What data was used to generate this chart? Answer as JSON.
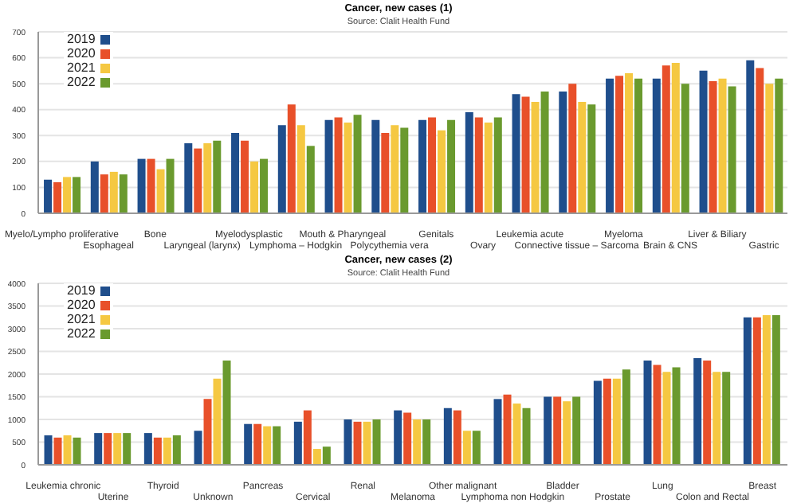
{
  "chart_data": [
    {
      "type": "bar",
      "title": "Cancer, new cases (1)",
      "subtitle": "Source: Clalit Health Fund",
      "categories": [
        "Myelo/Lympho proliferative",
        "Esophageal",
        "Bone",
        "Laryngeal (larynx)",
        "Myelodysplastic",
        "Lymphoma – Hodgkin",
        "Mouth & Pharyngeal",
        "Polycythemia vera",
        "Genitals",
        "Ovary",
        "Leukemia acute",
        "Connective tissue – Sarcoma",
        "Myeloma",
        "Brain & CNS",
        "Liver & Biliary",
        "Gastric"
      ],
      "series": [
        {
          "name": "2019",
          "color": "#1f4e8c",
          "values": [
            130,
            200,
            210,
            270,
            310,
            340,
            360,
            360,
            360,
            390,
            460,
            470,
            520,
            520,
            550,
            590
          ]
        },
        {
          "name": "2020",
          "color": "#e8502a",
          "values": [
            120,
            150,
            210,
            250,
            280,
            420,
            370,
            310,
            370,
            370,
            450,
            500,
            530,
            570,
            510,
            560
          ]
        },
        {
          "name": "2021",
          "color": "#f5c842",
          "values": [
            140,
            160,
            170,
            270,
            200,
            340,
            350,
            340,
            320,
            350,
            430,
            430,
            540,
            580,
            520,
            500
          ]
        },
        {
          "name": "2022",
          "color": "#6a9a2e",
          "values": [
            140,
            150,
            210,
            280,
            210,
            260,
            380,
            330,
            360,
            370,
            470,
            420,
            520,
            500,
            490,
            520
          ]
        }
      ],
      "ylim": [
        0,
        700
      ],
      "yticks": [
        0,
        100,
        200,
        300,
        400,
        500,
        600,
        700
      ],
      "grid": "y",
      "legend": "top left"
    },
    {
      "type": "bar",
      "title": "Cancer, new cases (2)",
      "subtitle": "Source: Clalit Health Fund",
      "categories": [
        "Leukemia chronic",
        "Uterine",
        "Thyroid",
        "Unknown",
        "Pancreas",
        "Cervical",
        "Renal",
        "Melanoma",
        "Other malignant",
        "Lymphoma non Hodgkin",
        "Bladder",
        "Prostate",
        "Lung",
        "Colon and Rectal",
        "Breast"
      ],
      "series": [
        {
          "name": "2019",
          "color": "#1f4e8c",
          "values": [
            650,
            700,
            700,
            750,
            900,
            950,
            1000,
            1200,
            1250,
            1450,
            1500,
            1850,
            2300,
            2350,
            3250
          ]
        },
        {
          "name": "2020",
          "color": "#e8502a",
          "values": [
            600,
            700,
            600,
            1450,
            900,
            1200,
            950,
            1150,
            1200,
            1550,
            1500,
            1900,
            2200,
            2300,
            3250
          ]
        },
        {
          "name": "2021",
          "color": "#f5c842",
          "values": [
            650,
            700,
            600,
            1900,
            850,
            350,
            950,
            1000,
            750,
            1350,
            1400,
            1900,
            2050,
            2050,
            3300
          ]
        },
        {
          "name": "2022",
          "color": "#6a9a2e",
          "values": [
            600,
            700,
            650,
            2300,
            850,
            400,
            1000,
            1000,
            750,
            1250,
            1500,
            2100,
            2150,
            2050,
            3300
          ]
        }
      ],
      "ylim": [
        0,
        4000
      ],
      "yticks": [
        0,
        500,
        1000,
        1500,
        2000,
        2500,
        3000,
        3500,
        4000
      ],
      "grid": "y",
      "legend": "top left"
    }
  ]
}
